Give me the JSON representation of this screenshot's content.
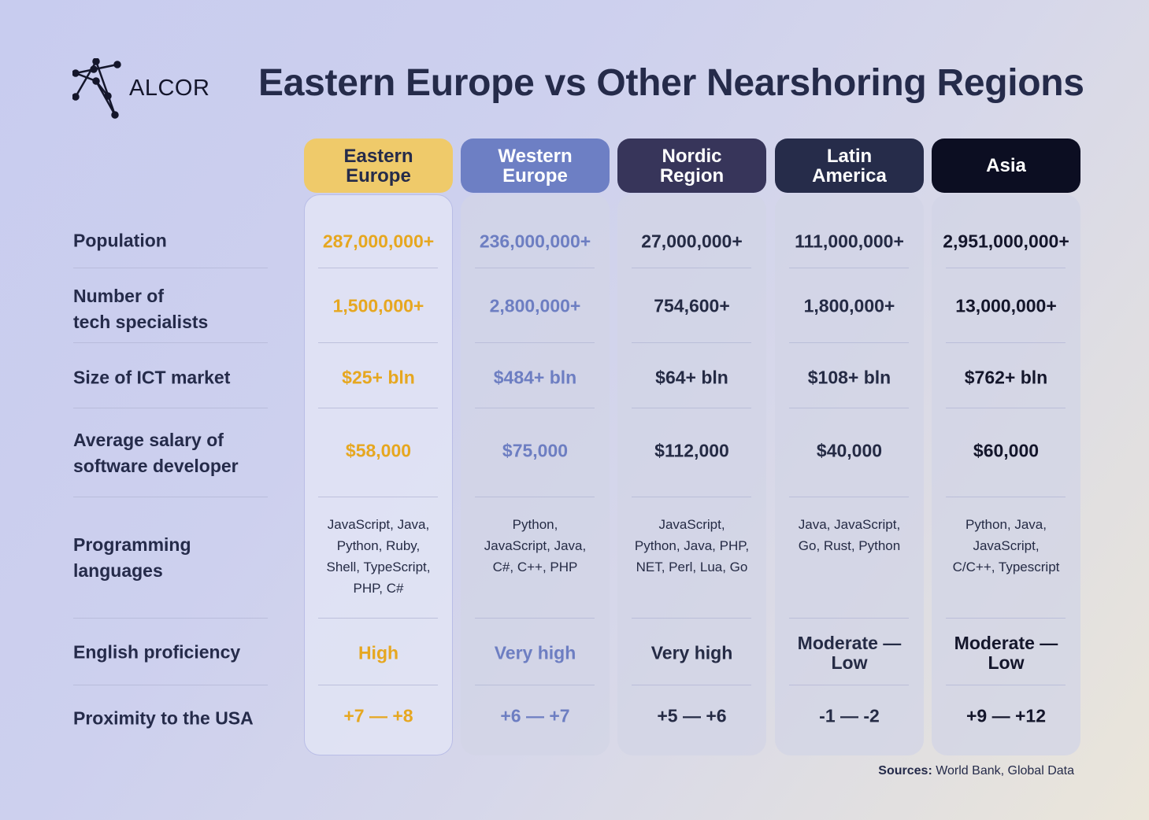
{
  "brand": {
    "logo_text": "ALCOR"
  },
  "title": "Eastern Europe vs Other Nearshoring Regions",
  "colors": {
    "eastern_europe": "#efca6a",
    "western_europe": "#6d7fc4",
    "nordic": "#37355a",
    "latin_america": "#262c4a",
    "asia": "#0c0e22",
    "ee_value": "#e6a720",
    "we_value": "#6d7ec2",
    "default_value": "#252b45"
  },
  "chart_data": {
    "type": "table",
    "title": "Eastern Europe vs Other Nearshoring Regions",
    "columns": [
      "Eastern\nEurope",
      "Western\nEurope",
      "Nordic\nRegion",
      "Latin\nAmerica",
      "Asia"
    ],
    "rows": [
      {
        "label": "Population",
        "values": [
          "287,000,000+",
          "236,000,000+",
          "27,000,000+",
          "111,000,000+",
          "2,951,000,000+"
        ]
      },
      {
        "label": "Number of\ntech specialists",
        "values": [
          "1,500,000+",
          "2,800,000+",
          "754,600+",
          "1,800,000+",
          "13,000,000+"
        ]
      },
      {
        "label": "Size of ICT market",
        "values": [
          "$25+ bln",
          "$484+ bln",
          "$64+ bln",
          "$108+ bln",
          "$762+ bln"
        ]
      },
      {
        "label": "Average salary of\nsoftware developer",
        "values": [
          "$58,000",
          "$75,000",
          "$112,000",
          "$40,000",
          "$60,000"
        ]
      },
      {
        "label": "Programming\nlanguages",
        "values": [
          "JavaScript, Java,\nPython, Ruby,\nShell, TypeScript,\nPHP, C#",
          "Python,\nJavaScript, Java,\nC#, C++, PHP",
          "JavaScript,\nPython, Java, PHP,\nNET, Perl, Lua, Go",
          "Java, JavaScript,\nGo, Rust, Python",
          "Python, Java,\nJavaScript,\nC/C++, Typescript"
        ]
      },
      {
        "label": "English proficiency",
        "values": [
          "High",
          "Very high",
          "Very high",
          "Moderate —\nLow",
          "Moderate —\nLow"
        ]
      },
      {
        "label": "Proximity to the USA",
        "values": [
          "+7 — +8",
          "+6 — +7",
          "+5 — +6",
          "-1 — -2",
          "+9 — +12"
        ]
      }
    ]
  },
  "sources": {
    "label": "Sources:",
    "text": " World Bank, Global Data"
  }
}
